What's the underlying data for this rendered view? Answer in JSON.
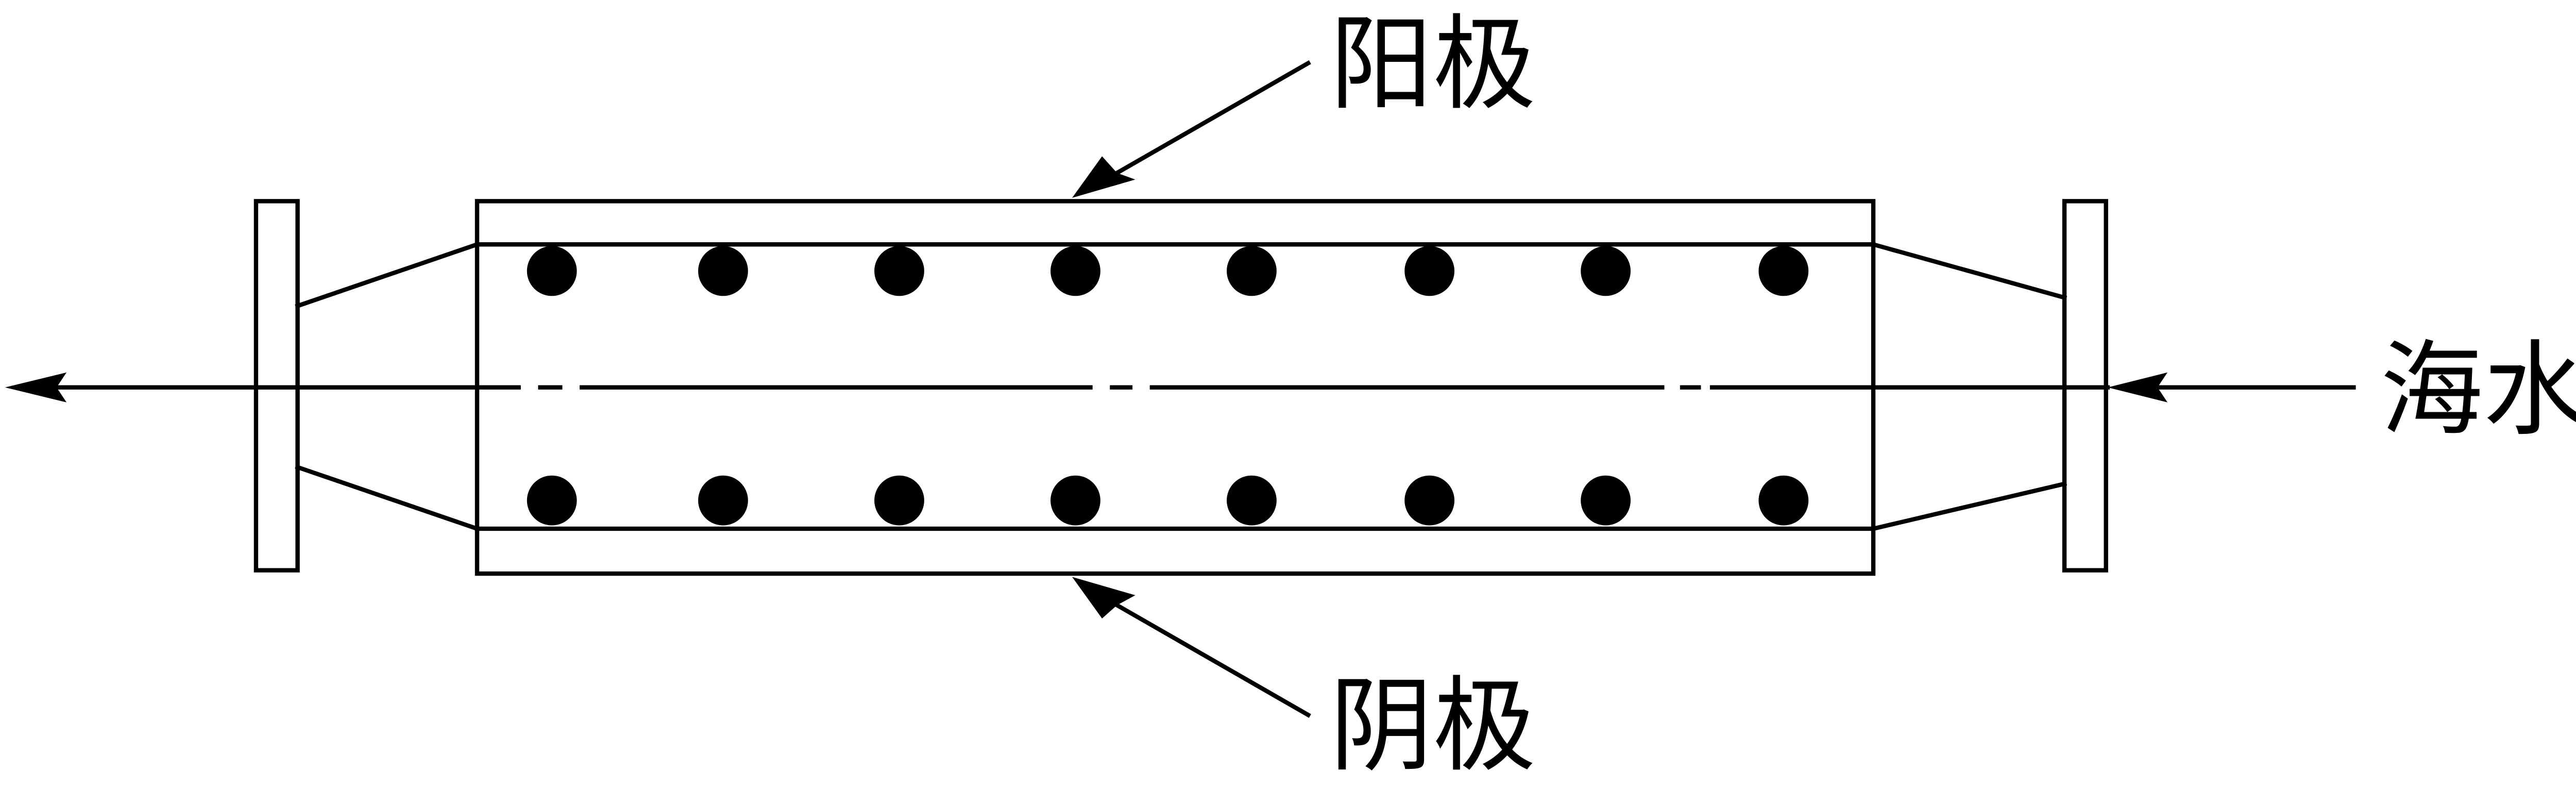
{
  "labels": {
    "anode": "阳极",
    "cathode": "阴极",
    "seawater": "海水"
  },
  "colors": {
    "stroke": "#000000",
    "background": "#ffffff"
  }
}
